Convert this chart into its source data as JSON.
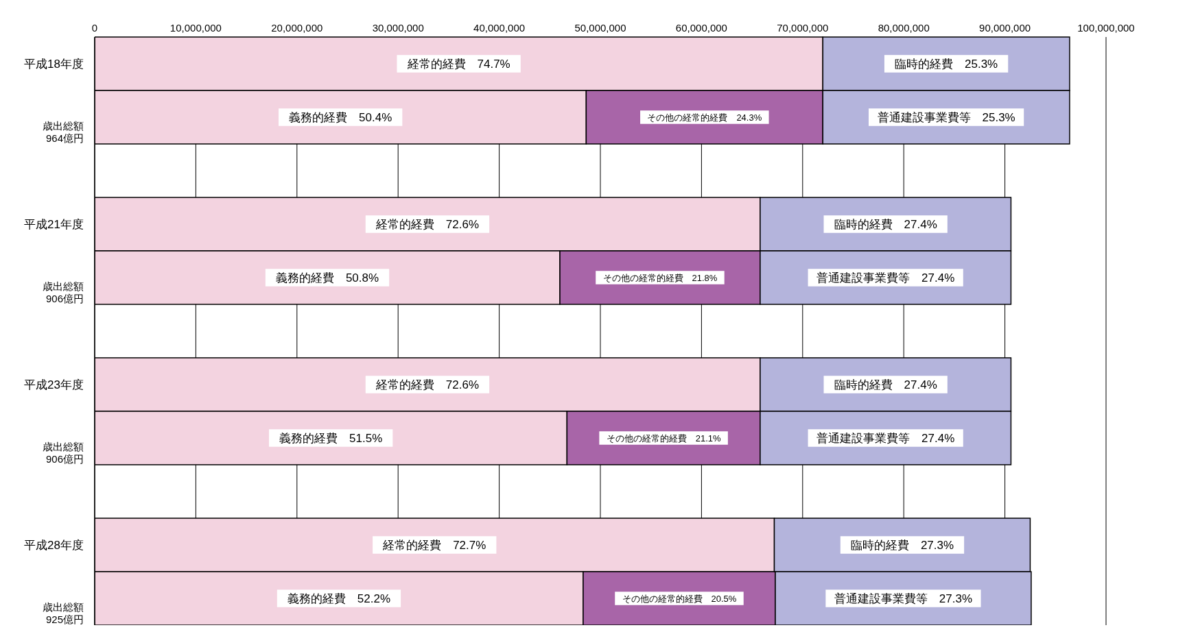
{
  "chart_data": {
    "type": "bar",
    "orientation": "horizontal",
    "stacked": true,
    "grid": "x",
    "legend": false,
    "categories": [
      "平成18年度",
      "歳出総額\n964億円",
      null,
      "平成21年度",
      "歳出総額\n906億円",
      null,
      "平成23年度",
      "歳出総額\n906億円",
      null,
      "平成28年度",
      "歳出総額\n925億円"
    ],
    "xlim": [
      0,
      100000000
    ],
    "xticks": [
      {
        "value": 0,
        "label": "0"
      },
      {
        "value": 10000000,
        "label": "10,000,000"
      },
      {
        "value": 20000000,
        "label": "20,000,000"
      },
      {
        "value": 30000000,
        "label": "30,000,000"
      },
      {
        "value": 40000000,
        "label": "40,000,000"
      },
      {
        "value": 50000000,
        "label": "50,000,000"
      },
      {
        "value": 60000000,
        "label": "60,000,000"
      },
      {
        "value": 70000000,
        "label": "70,000,000"
      },
      {
        "value": 80000000,
        "label": "80,000,000"
      },
      {
        "value": 90000000,
        "label": "90,000,000"
      },
      {
        "value": 100000000,
        "label": "100,000,000"
      }
    ],
    "series": [
      {
        "color": "#f3d3e0",
        "values": [
          72000000,
          null,
          null,
          65800000,
          null,
          null,
          65800000,
          null,
          null,
          67200000,
          null
        ],
        "value_labels": [
          "経常的経費　74.7%",
          null,
          null,
          "経常的経費　72.6%",
          null,
          null,
          "経常的経費　72.6%",
          null,
          null,
          "経常的経費　72.7%",
          null
        ]
      },
      {
        "color": "#f3d3e0",
        "values": [
          null,
          48600000,
          null,
          null,
          46000000,
          null,
          null,
          46700000,
          null,
          null,
          48300000
        ],
        "value_labels": [
          null,
          "義務的経費　50.4%",
          null,
          null,
          "義務的経費　50.8%",
          null,
          null,
          "義務的経費　51.5%",
          null,
          null,
          "義務的経費　52.2%"
        ]
      },
      {
        "color": "#a865a8",
        "values": [
          null,
          23400000,
          null,
          null,
          19800000,
          null,
          null,
          19100000,
          null,
          null,
          19000000
        ],
        "value_labels": [
          null,
          "その他の経常的経費　24.3%",
          null,
          null,
          "その他の経常的経費　21.8%",
          null,
          null,
          "その他の経常的経費　21.1%",
          null,
          null,
          "その他の経常的経費　20.5%"
        ]
      },
      {
        "color": "#b4b4dc",
        "values": [
          24400000,
          null,
          null,
          24800000,
          null,
          null,
          24800000,
          null,
          null,
          25300000,
          null
        ],
        "value_labels": [
          "臨時的経費　25.3%",
          null,
          null,
          "臨時的経費　27.4%",
          null,
          null,
          "臨時的経費　27.4%",
          null,
          null,
          "臨時的経費　27.3%",
          null
        ]
      },
      {
        "color": "#b4b4dc",
        "values": [
          null,
          24400000,
          null,
          null,
          24800000,
          null,
          null,
          24800000,
          null,
          null,
          25300000
        ],
        "value_labels": [
          null,
          "普通建設事業費等　25.3%",
          null,
          null,
          "普通建設事業費等　27.4%",
          null,
          null,
          "普通建設事業費等　27.4%",
          null,
          null,
          "普通建設事業費等　27.3%"
        ]
      }
    ]
  }
}
